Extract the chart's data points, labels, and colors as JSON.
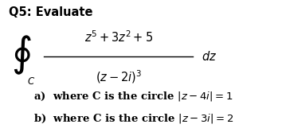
{
  "title": "Q5: Evaluate",
  "title_fontsize": 10.5,
  "title_weight": "bold",
  "background_color": "#ffffff",
  "text_color": "#000000",
  "numerator": "$z^5 + 3z^2 + 5$",
  "denominator": "$(z - 2i)^3$",
  "dz": "$dz$",
  "part_a": "a)  where C is the circle $|z - 4i| = 1$",
  "part_b": "b)  where C is the circle $|z - 3i| = 2$",
  "parts_fontsize": 9.5,
  "parts_weight": "bold",
  "math_fontsize": 10.5,
  "integral_fontsize": 26
}
